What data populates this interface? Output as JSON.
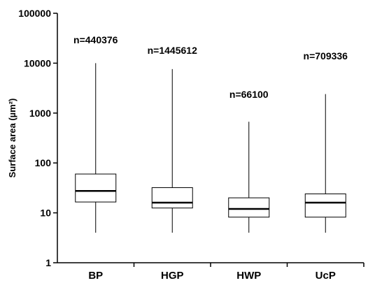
{
  "chart_data": {
    "type": "boxplot",
    "title": "",
    "xlabel": "",
    "ylabel": "Surface area (µm²)",
    "yscale": "log",
    "ylim": [
      1,
      100000
    ],
    "yticks": [
      1,
      10,
      100,
      1000,
      10000,
      100000
    ],
    "ytick_labels": [
      "1",
      "10",
      "100",
      "1000",
      "10000",
      "100000"
    ],
    "categories": [
      "BP",
      "HGP",
      "HWP",
      "UcP"
    ],
    "boxes": [
      {
        "category": "BP",
        "whisker_low": 4,
        "q1": 16.5,
        "median": 27.5,
        "q3": 60,
        "whisker_high": 10000
      },
      {
        "category": "HGP",
        "whisker_low": 4,
        "q1": 12.5,
        "median": 16,
        "q3": 32,
        "whisker_high": 7600
      },
      {
        "category": "HWP",
        "whisker_low": 4,
        "q1": 8.2,
        "median": 12,
        "q3": 20,
        "whisker_high": 670
      },
      {
        "category": "UcP",
        "whisker_low": 4,
        "q1": 8.2,
        "median": 16,
        "q3": 24,
        "whisker_high": 2400
      }
    ],
    "annotations": [
      "n=440376",
      "n=1445612",
      "n=66100",
      "n=709336"
    ],
    "grid": false,
    "legend": "none"
  }
}
